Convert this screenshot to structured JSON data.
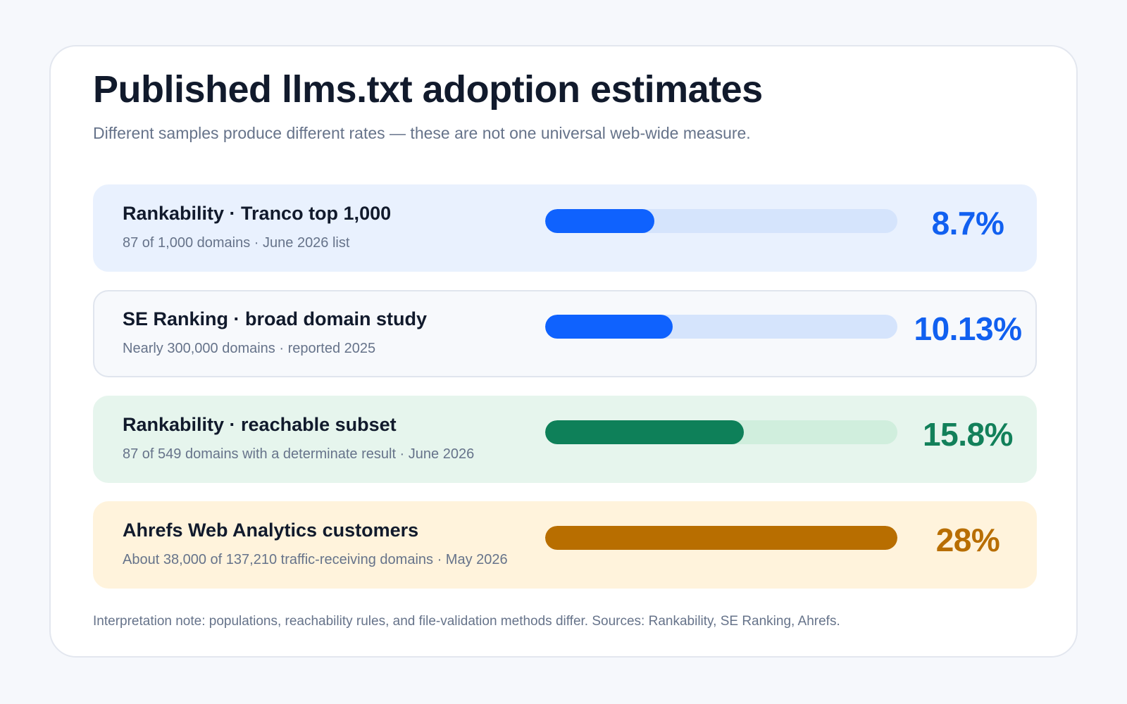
{
  "title": "Published llms.txt adoption estimates",
  "subtitle": "Different samples produce different rates — these are not one universal web-wide measure.",
  "note": "Interpretation note: populations, reachability rules, and file-validation methods differ. Sources: Rankability, SE Ranking, Ahrefs.",
  "chart_data": {
    "type": "bar",
    "orientation": "horizontal",
    "xlim": [
      0,
      28
    ],
    "categories": [
      "Rankability · Tranco top 1,000",
      "SE Ranking · broad domain study",
      "Rankability · reachable subset",
      "Ahrefs Web Analytics customers"
    ],
    "values": [
      8.7,
      10.13,
      15.8,
      28
    ],
    "rows": [
      {
        "label": "Rankability · Tranco top 1,000",
        "sublabel": "87 of 1,000 domains · June 2026 list",
        "value": 8.7,
        "value_text": "8.7%",
        "bg": "#e9f1fe",
        "border": "#e9f1fe",
        "track": "#d5e4fc",
        "fill": "#0f62fe",
        "text_color": "#1160f0"
      },
      {
        "label": "SE Ranking · broad domain study",
        "sublabel": "Nearly 300,000 domains · reported 2025",
        "value": 10.13,
        "value_text": "10.13%",
        "bg": "#f7f9fc",
        "border": "#e0e5ee",
        "track": "#d5e4fc",
        "fill": "#0f62fe",
        "text_color": "#1160f0"
      },
      {
        "label": "Rankability · reachable subset",
        "sublabel": "87 of 549 domains with a determinate result · June 2026",
        "value": 15.8,
        "value_text": "15.8%",
        "bg": "#e6f5ed",
        "border": "#e6f5ed",
        "track": "#d0eedd",
        "fill": "#0e8059",
        "text_color": "#12805a"
      },
      {
        "label": "Ahrefs Web Analytics customers",
        "sublabel": "About 38,000 of 137,210 traffic-receiving domains · May 2026",
        "value": 28,
        "value_text": "28%",
        "bg": "#fff3dc",
        "border": "#fff3dc",
        "track": "#f8e2b8",
        "fill": "#b86e00",
        "text_color": "#b86e00"
      }
    ]
  }
}
